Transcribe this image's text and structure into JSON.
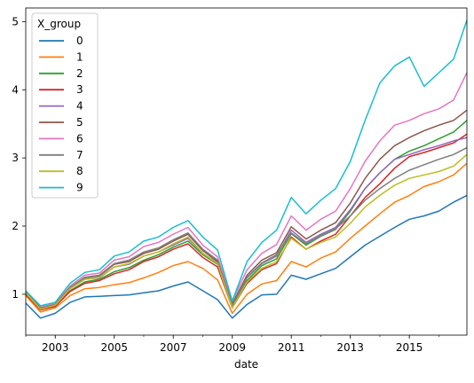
{
  "chart_data": {
    "type": "line",
    "title": "",
    "xlabel": "date",
    "ylabel": "",
    "xlim": [
      2002.0,
      2016.95
    ],
    "ylim": [
      0.4,
      5.2
    ],
    "grid": false,
    "legend_placement": "top-left",
    "legend_title": "X_group",
    "x_tick_labels": [
      "2003",
      "2005",
      "2007",
      "2009",
      "2011",
      "2013",
      "2015"
    ],
    "y_tick_labels": [
      "1",
      "2",
      "3",
      "4",
      "5"
    ],
    "x_ticks": [
      2003,
      2005,
      2007,
      2009,
      2011,
      2013,
      2015
    ],
    "y_ticks": [
      1,
      2,
      3,
      4,
      5
    ],
    "x": [
      2002.0,
      2002.5,
      2003.0,
      2003.5,
      2004.0,
      2004.5,
      2005.0,
      2005.5,
      2006.0,
      2006.5,
      2007.0,
      2007.5,
      2008.0,
      2008.5,
      2009.0,
      2009.5,
      2010.0,
      2010.5,
      2011.0,
      2011.5,
      2012.0,
      2012.5,
      2013.0,
      2013.5,
      2014.0,
      2014.5,
      2015.0,
      2015.5,
      2016.0,
      2016.5,
      2016.95
    ],
    "series": [
      {
        "name": "0",
        "color": "#1f77b4",
        "values": [
          0.87,
          0.65,
          0.72,
          0.88,
          0.96,
          0.97,
          0.98,
          0.99,
          1.02,
          1.05,
          1.12,
          1.18,
          1.05,
          0.92,
          0.65,
          0.85,
          0.99,
          1.0,
          1.28,
          1.22,
          1.3,
          1.38,
          1.55,
          1.72,
          1.85,
          1.98,
          2.1,
          2.15,
          2.22,
          2.35,
          2.45
        ]
      },
      {
        "name": "1",
        "color": "#ff7f0e",
        "values": [
          0.98,
          0.74,
          0.8,
          0.98,
          1.08,
          1.1,
          1.14,
          1.17,
          1.24,
          1.32,
          1.42,
          1.48,
          1.38,
          1.21,
          0.72,
          1.0,
          1.15,
          1.2,
          1.48,
          1.4,
          1.53,
          1.62,
          1.82,
          2.0,
          2.18,
          2.35,
          2.45,
          2.58,
          2.65,
          2.75,
          2.92
        ]
      },
      {
        "name": "2",
        "color": "#2ca02c",
        "values": [
          1.01,
          0.78,
          0.83,
          1.05,
          1.18,
          1.22,
          1.33,
          1.39,
          1.5,
          1.58,
          1.69,
          1.78,
          1.58,
          1.44,
          0.82,
          1.2,
          1.42,
          1.52,
          1.89,
          1.72,
          1.85,
          1.95,
          2.22,
          2.55,
          2.78,
          2.98,
          3.1,
          3.18,
          3.28,
          3.38,
          3.55
        ]
      },
      {
        "name": "3",
        "color": "#d62728",
        "values": [
          1.0,
          0.77,
          0.82,
          1.04,
          1.16,
          1.2,
          1.3,
          1.36,
          1.48,
          1.55,
          1.66,
          1.74,
          1.54,
          1.4,
          0.8,
          1.16,
          1.36,
          1.45,
          1.84,
          1.66,
          1.78,
          1.88,
          2.15,
          2.42,
          2.62,
          2.85,
          3.02,
          3.08,
          3.15,
          3.22,
          3.35
        ]
      },
      {
        "name": "4",
        "color": "#9467bd",
        "values": [
          1.02,
          0.79,
          0.84,
          1.08,
          1.22,
          1.24,
          1.4,
          1.44,
          1.56,
          1.62,
          1.72,
          1.82,
          1.6,
          1.46,
          0.84,
          1.24,
          1.45,
          1.56,
          1.94,
          1.76,
          1.88,
          1.98,
          2.24,
          2.55,
          2.78,
          2.98,
          3.05,
          3.12,
          3.18,
          3.25,
          3.3
        ]
      },
      {
        "name": "5",
        "color": "#8c564b",
        "values": [
          1.03,
          0.8,
          0.85,
          1.1,
          1.24,
          1.27,
          1.44,
          1.48,
          1.6,
          1.66,
          1.78,
          1.88,
          1.64,
          1.48,
          0.86,
          1.28,
          1.5,
          1.61,
          1.99,
          1.81,
          1.94,
          2.05,
          2.34,
          2.7,
          2.98,
          3.18,
          3.3,
          3.4,
          3.48,
          3.55,
          3.7
        ]
      },
      {
        "name": "6",
        "color": "#e377c2",
        "values": [
          1.04,
          0.81,
          0.86,
          1.12,
          1.28,
          1.31,
          1.5,
          1.55,
          1.7,
          1.76,
          1.88,
          1.98,
          1.72,
          1.55,
          0.9,
          1.36,
          1.6,
          1.73,
          2.15,
          1.94,
          2.1,
          2.22,
          2.55,
          2.95,
          3.25,
          3.48,
          3.55,
          3.65,
          3.72,
          3.85,
          4.25
        ]
      },
      {
        "name": "7",
        "color": "#7f7f7f",
        "values": [
          1.03,
          0.8,
          0.85,
          1.1,
          1.25,
          1.28,
          1.45,
          1.5,
          1.62,
          1.68,
          1.8,
          1.9,
          1.66,
          1.5,
          0.84,
          1.25,
          1.46,
          1.58,
          1.9,
          1.74,
          1.86,
          1.96,
          2.15,
          2.38,
          2.55,
          2.7,
          2.82,
          2.9,
          2.98,
          3.05,
          3.15
        ]
      },
      {
        "name": "8",
        "color": "#bcbd22",
        "values": [
          1.02,
          0.78,
          0.84,
          1.08,
          1.22,
          1.25,
          1.4,
          1.45,
          1.56,
          1.62,
          1.74,
          1.84,
          1.6,
          1.45,
          0.8,
          1.18,
          1.38,
          1.48,
          1.82,
          1.66,
          1.76,
          1.84,
          2.04,
          2.28,
          2.45,
          2.6,
          2.7,
          2.75,
          2.8,
          2.88,
          3.05
        ]
      },
      {
        "name": "9",
        "color": "#17becf",
        "values": [
          1.05,
          0.83,
          0.88,
          1.16,
          1.32,
          1.36,
          1.56,
          1.62,
          1.78,
          1.84,
          1.98,
          2.08,
          1.84,
          1.65,
          0.9,
          1.48,
          1.76,
          1.94,
          2.42,
          2.18,
          2.38,
          2.55,
          2.95,
          3.55,
          4.1,
          4.35,
          4.48,
          4.05,
          4.25,
          4.45,
          5.02
        ]
      }
    ]
  }
}
